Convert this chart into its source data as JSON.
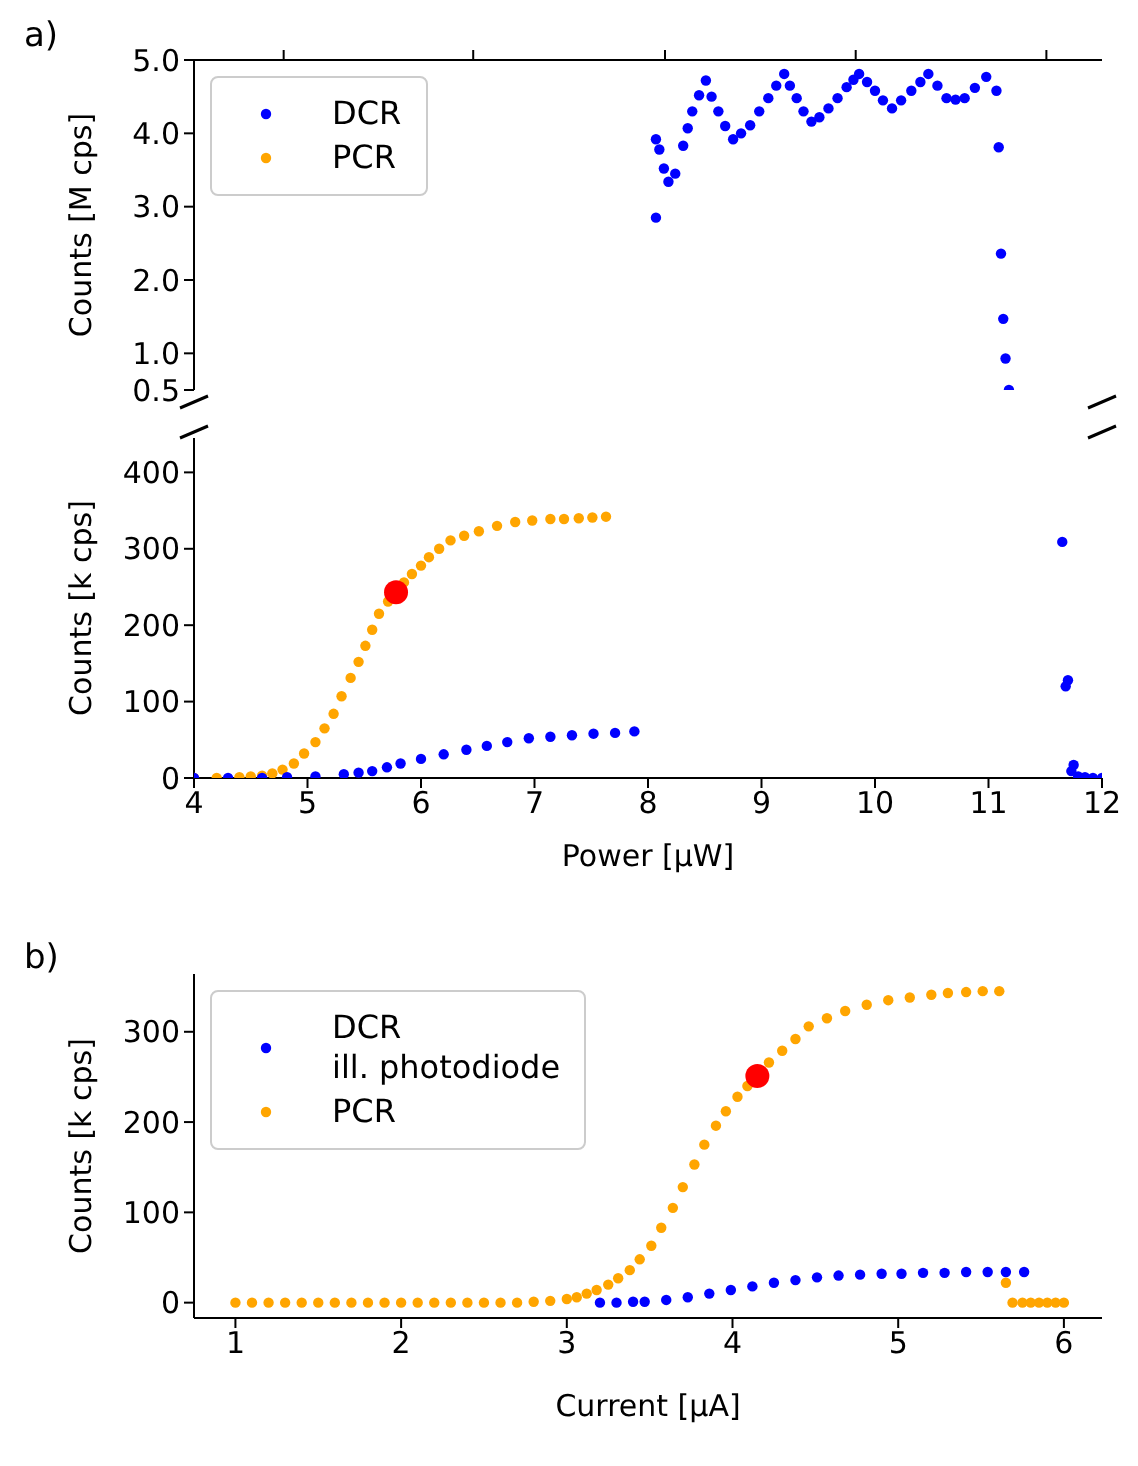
{
  "chart_data": [
    {
      "type": "scatter",
      "title": "a)",
      "ylabel": "Counts [M cps]",
      "xlim": [
        4,
        12
      ],
      "xticks": [
        {
          "value": 4.79,
          "label": null
        },
        {
          "value": 6.46,
          "label": null
        },
        {
          "value": 8.15,
          "label": null
        },
        {
          "value": 9.83,
          "label": null
        },
        {
          "value": 11.51,
          "label": null
        }
      ],
      "ylim": [
        0.5,
        5.0
      ],
      "yticks": [
        {
          "value": 0.5,
          "label": "0.5"
        },
        {
          "value": 1,
          "label": "1.0"
        },
        {
          "value": 2,
          "label": "2.0"
        },
        {
          "value": 3,
          "label": "3.0"
        },
        {
          "value": 4,
          "label": "4.0"
        },
        {
          "value": 5,
          "label": "5.0"
        }
      ],
      "tick_labels": "y",
      "legend": "top left",
      "marker": "circle",
      "series": [
        {
          "name": "DCR",
          "color": "#0000ff",
          "x": [
            8.07,
            8.07,
            8.1,
            8.14,
            8.18,
            8.24,
            8.31,
            8.35,
            8.39,
            8.45,
            8.51,
            8.56,
            8.62,
            8.68,
            8.75,
            8.82,
            8.9,
            8.98,
            9.06,
            9.13,
            9.2,
            9.25,
            9.31,
            9.37,
            9.44,
            9.51,
            9.59,
            9.67,
            9.75,
            9.81,
            9.86,
            9.93,
            10.0,
            10.07,
            10.15,
            10.23,
            10.32,
            10.4,
            10.47,
            10.55,
            10.63,
            10.71,
            10.79,
            10.88,
            10.98,
            11.07,
            11.09,
            11.11,
            11.13,
            11.15,
            11.18
          ],
          "values": [
            2.85,
            3.92,
            3.78,
            3.52,
            3.34,
            3.45,
            3.83,
            4.07,
            4.3,
            4.52,
            4.72,
            4.5,
            4.3,
            4.1,
            3.92,
            4.0,
            4.11,
            4.3,
            4.48,
            4.65,
            4.81,
            4.65,
            4.48,
            4.3,
            4.16,
            4.22,
            4.34,
            4.48,
            4.63,
            4.73,
            4.81,
            4.7,
            4.58,
            4.45,
            4.34,
            4.45,
            4.58,
            4.7,
            4.81,
            4.65,
            4.48,
            4.46,
            4.48,
            4.62,
            4.77,
            4.58,
            3.81,
            2.36,
            1.47,
            0.93,
            0.5
          ]
        },
        {
          "name": "PCR",
          "color": "#ffa500"
        }
      ]
    },
    {
      "type": "scatter",
      "xlabel": "Power [μW]",
      "ylabel": "Counts [k cps]",
      "xlim": [
        4,
        12
      ],
      "xticks": [
        4,
        5,
        6,
        7,
        8,
        9,
        10,
        11,
        12
      ],
      "ylim": [
        0,
        445
      ],
      "yticks": [
        0,
        100,
        200,
        300,
        400
      ],
      "marker": "circle",
      "series": [
        {
          "color": "#ffa500",
          "x": [
            4.0,
            4.2,
            4.4,
            4.5,
            4.6,
            4.69,
            4.78,
            4.88,
            4.97,
            5.07,
            5.15,
            5.23,
            5.3,
            5.38,
            5.45,
            5.51,
            5.57,
            5.63,
            5.71,
            5.85,
            5.92,
            6.0,
            6.07,
            6.16,
            6.26,
            6.38,
            6.51,
            6.67,
            6.83,
            6.98,
            7.14,
            7.26,
            7.39,
            7.51,
            7.63
          ],
          "values": [
            0,
            0,
            1,
            2,
            3,
            6,
            11,
            19,
            32,
            47,
            65,
            84,
            107,
            131,
            152,
            173,
            194,
            215,
            231,
            256,
            267,
            278,
            289,
            300,
            311,
            317,
            323,
            330,
            335,
            337,
            339,
            339,
            340,
            341,
            342
          ]
        },
        {
          "color": "#0000ff",
          "x": [
            4.0,
            4.3,
            4.6,
            4.82,
            5.07,
            5.32,
            5.45,
            5.57,
            5.7,
            5.82,
            6.0,
            6.2,
            6.4,
            6.58,
            6.76,
            6.95,
            7.14,
            7.33,
            7.52,
            7.71,
            7.88,
            11.65,
            11.68,
            11.7,
            11.73,
            11.75,
            11.79,
            11.85,
            11.92,
            12.0
          ],
          "values": [
            0,
            0,
            0,
            1,
            2,
            5,
            7,
            9,
            14,
            19,
            25,
            31,
            37,
            42,
            47,
            52,
            54,
            56,
            58,
            59,
            61,
            309,
            120,
            128,
            9,
            17,
            2,
            1,
            0,
            0
          ]
        },
        {
          "color": "#ff0000",
          "x": [
            5.78
          ],
          "values": [
            243
          ]
        }
      ]
    },
    {
      "type": "scatter",
      "title": "b)",
      "xlabel": "Current [μA]",
      "ylabel": "Counts [k cps]",
      "xlim": [
        0.75,
        6.23
      ],
      "xticks": [
        1,
        2,
        3,
        4,
        5,
        6
      ],
      "ylim": [
        -17,
        364
      ],
      "yticks": [
        0,
        100,
        200,
        300
      ],
      "legend": "top left",
      "marker": "circle",
      "series": [
        {
          "name": "DCR\nill. photodiode",
          "color": "#0000ff",
          "x": [
            3.2,
            3.3,
            3.4,
            3.47,
            3.6,
            3.73,
            3.86,
            3.99,
            4.12,
            4.25,
            4.38,
            4.51,
            4.64,
            4.77,
            4.9,
            5.02,
            5.15,
            5.28,
            5.41,
            5.54,
            5.65,
            5.76
          ],
          "values": [
            0,
            0,
            1,
            1,
            3,
            6,
            10,
            14,
            18,
            22,
            25,
            28,
            30,
            31,
            32,
            32,
            33,
            33,
            34,
            34,
            34,
            34
          ]
        },
        {
          "name": "PCR",
          "color": "#ffa500",
          "x": [
            1.0,
            1.1,
            1.2,
            1.3,
            1.4,
            1.5,
            1.6,
            1.7,
            1.8,
            1.9,
            2.0,
            2.1,
            2.2,
            2.3,
            2.4,
            2.5,
            2.6,
            2.7,
            2.8,
            2.9,
            3.0,
            3.06,
            3.12,
            3.18,
            3.25,
            3.31,
            3.38,
            3.44,
            3.51,
            3.57,
            3.64,
            3.7,
            3.77,
            3.83,
            3.9,
            3.96,
            4.03,
            4.09,
            4.22,
            4.3,
            4.38,
            4.46,
            4.57,
            4.68,
            4.81,
            4.94,
            5.07,
            5.2,
            5.3,
            5.41,
            5.51,
            5.61,
            5.65,
            5.69,
            5.75,
            5.8,
            5.85,
            5.9,
            5.95,
            6.0
          ],
          "values": [
            0,
            0,
            0,
            0,
            0,
            0,
            0,
            0,
            0,
            0,
            0,
            0,
            0,
            0,
            0,
            0,
            0,
            0,
            1,
            2,
            4,
            6,
            10,
            14,
            20,
            27,
            36,
            48,
            63,
            83,
            105,
            128,
            153,
            175,
            196,
            212,
            228,
            240,
            266,
            279,
            292,
            306,
            315,
            323,
            330,
            335,
            338,
            341,
            343,
            344,
            345,
            345,
            22,
            0,
            0,
            0,
            0,
            0,
            0,
            0
          ]
        },
        {
          "color": "#ff0000",
          "x": [
            4.15
          ],
          "values": [
            251
          ]
        }
      ]
    }
  ]
}
